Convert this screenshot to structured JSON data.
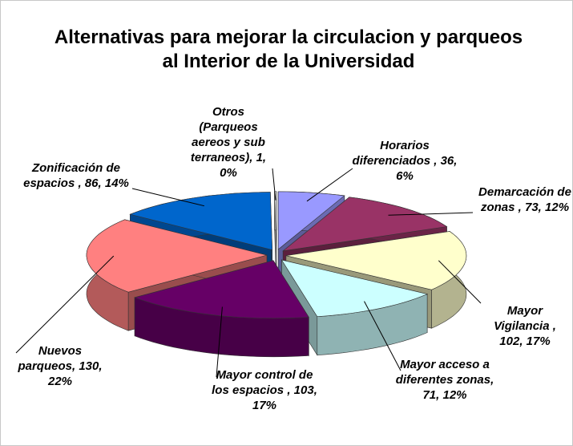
{
  "chart_data": {
    "type": "pie3d",
    "title": "Alternativas para mejorar la circulacion y parqueos al Interior de la Universidad",
    "categories": [
      "Horarios diferenciados ,",
      "Demarcación de zonas ,",
      "Mayor Vigilancia ,",
      "Mayor acceso a diferentes zonas,",
      "Mayor control de los espacios ,",
      "Nuevos parqueos,",
      "Zonificación de espacios ,",
      "Otros (Parqueos aereos y sub terraneos),"
    ],
    "values": [
      36,
      73,
      102,
      71,
      103,
      130,
      86,
      1
    ],
    "value_labels": [
      "36, 6%",
      "73, 12%",
      "102, 17%",
      "71, 12%",
      "103, 17%",
      "130, 22%",
      "86, 14%",
      "1, 0%"
    ],
    "colors": [
      "#9999ff",
      "#993366",
      "#ffffcc",
      "#ccffff",
      "#660066",
      "#ff8080",
      "#0066cc",
      "#ffffff"
    ]
  }
}
